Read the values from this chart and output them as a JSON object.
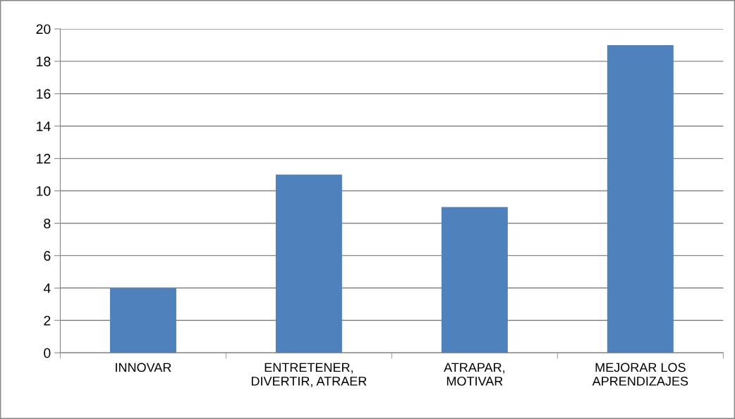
{
  "chart_data": {
    "type": "bar",
    "categories": [
      "INNOVAR",
      "ENTRETENER,\nDIVERTIR, ATRAER",
      "ATRAPAR,\nMOTIVAR",
      "MEJORAR LOS\nAPRENDIZAJES"
    ],
    "values": [
      4,
      11,
      9,
      19
    ],
    "color": "#4f81bd",
    "ylim": [
      0,
      20
    ],
    "yticks": [
      0,
      2,
      4,
      6,
      8,
      10,
      12,
      14,
      16,
      18,
      20
    ],
    "grid": "y",
    "legend": false
  }
}
